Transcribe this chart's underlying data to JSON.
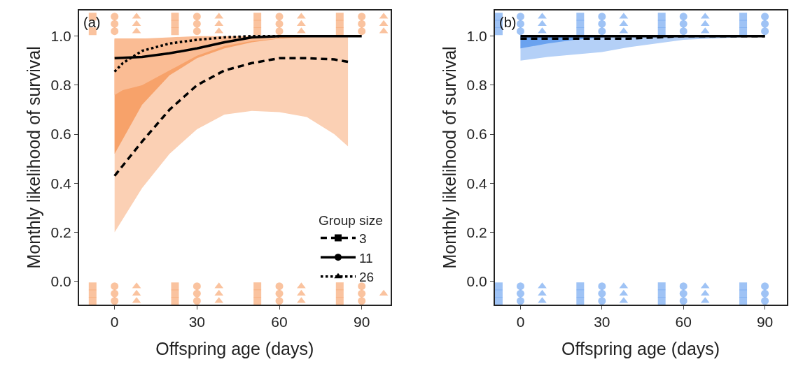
{
  "chart_data": [
    {
      "type": "line",
      "title": "(a)",
      "xlabel": "Offspring age (days)",
      "ylabel": "Monthly likelihood of survival",
      "legend_title": "Group size",
      "legend": "bottom right",
      "xlim": [
        -13,
        100.5
      ],
      "xticks": [
        0,
        30,
        60,
        90
      ],
      "ylim": [
        -0.095,
        1.105
      ],
      "yticks": [
        {
          "value": 0,
          "label": "0.0"
        },
        {
          "value": 0.2,
          "label": "0.2"
        },
        {
          "value": 0.4,
          "label": "0.4"
        },
        {
          "value": 0.6,
          "label": "0.6"
        },
        {
          "value": 0.8,
          "label": "0.8"
        },
        {
          "value": 1,
          "label": "1.0"
        }
      ],
      "series": [
        {
          "name": "3",
          "line_style": "dashed",
          "color": "#000000",
          "x": [
            0,
            10,
            20,
            30,
            40,
            50,
            60,
            70,
            80,
            85
          ],
          "values": [
            0.43,
            0.57,
            0.7,
            0.8,
            0.86,
            0.89,
            0.91,
            0.91,
            0.905,
            0.895
          ],
          "lower": [
            0.2,
            0.38,
            0.52,
            0.62,
            0.68,
            0.695,
            0.69,
            0.67,
            0.6,
            0.55
          ],
          "upper": [
            0.985,
            0.985,
            0.985,
            0.985,
            0.985,
            0.99,
            0.99,
            0.995,
            1.0,
            1.0
          ]
        },
        {
          "name": "11",
          "line_style": "solid",
          "color": "#000000",
          "x": [
            0,
            10,
            20,
            30,
            40,
            50,
            60,
            70,
            80,
            90
          ],
          "values": [
            0.91,
            0.915,
            0.93,
            0.95,
            0.975,
            0.995,
            1.0,
            1.0,
            1.0,
            1.0
          ],
          "lower": [
            0.52,
            0.72,
            0.84,
            0.91,
            0.95,
            0.975,
            0.99,
            0.995,
            1.0,
            1.0
          ],
          "upper": [
            0.99,
            0.99,
            0.99,
            0.99,
            0.995,
            1.0,
            1.0,
            1.0,
            1.0,
            1.0
          ]
        },
        {
          "name": "26",
          "line_style": "dotted",
          "color": "#000000",
          "x": [
            0,
            3,
            10,
            20,
            30,
            40,
            50,
            60
          ],
          "values": [
            0.855,
            0.89,
            0.94,
            0.97,
            0.985,
            0.995,
            1.0,
            1.0
          ],
          "lower": [
            0.76,
            0.78,
            0.8,
            0.86,
            0.92,
            0.96,
            0.98,
            0.99
          ],
          "upper": [
            0.99,
            0.99,
            0.99,
            0.995,
            1.0,
            1.0,
            1.0,
            1.0
          ]
        },
        {
          "type": "scatter",
          "marker": "square",
          "color": "#f47a2a",
          "x": [
            -8,
            -8,
            22,
            22,
            22,
            52,
            52,
            52,
            82,
            82,
            82,
            -8,
            -8,
            -8,
            22,
            22,
            22,
            52,
            52,
            52,
            82,
            82,
            82
          ],
          "values": [
            1.02,
            1.08,
            1.02,
            1.05,
            1.08,
            1.02,
            1.05,
            1.08,
            1.02,
            1.05,
            1.08,
            -0.02,
            -0.05,
            -0.08,
            -0.02,
            -0.05,
            -0.08,
            -0.02,
            -0.05,
            -0.08,
            -0.02,
            -0.05,
            -0.08
          ]
        },
        {
          "type": "scatter",
          "marker": "circle",
          "color": "#f47a2a",
          "x": [
            0,
            0,
            0,
            30,
            30,
            30,
            60,
            60,
            60,
            90,
            90,
            90,
            0,
            0,
            0,
            30,
            30,
            30,
            60,
            60,
            60,
            90,
            90,
            90
          ],
          "values": [
            1.02,
            1.05,
            1.08,
            1.02,
            1.05,
            1.08,
            1.02,
            1.05,
            1.08,
            1.02,
            1.05,
            1.08,
            -0.02,
            -0.05,
            -0.08,
            -0.02,
            -0.05,
            -0.08,
            -0.02,
            -0.05,
            -0.08,
            -0.02,
            -0.05,
            -0.08
          ]
        },
        {
          "type": "scatter",
          "marker": "triangle",
          "color": "#f47a2a",
          "x": [
            8,
            8,
            8,
            38,
            38,
            38,
            68,
            68,
            68,
            98,
            98,
            98,
            8,
            8,
            8,
            38,
            38,
            38,
            68,
            68,
            68,
            98
          ],
          "values": [
            1.02,
            1.05,
            1.08,
            1.02,
            1.05,
            1.08,
            1.02,
            1.05,
            1.08,
            1.02,
            1.05,
            1.08,
            -0.02,
            -0.05,
            -0.08,
            -0.02,
            -0.05,
            -0.08,
            -0.02,
            -0.05,
            -0.08,
            -0.05
          ]
        }
      ]
    },
    {
      "type": "line",
      "title": "(b)",
      "xlabel": "Offspring age (days)",
      "ylabel": "Monthly likelihood of survival",
      "xlim": [
        -9.5,
        98
      ],
      "xticks": [
        0,
        30,
        60,
        90
      ],
      "ylim": [
        -0.095,
        1.105
      ],
      "yticks": [
        {
          "value": 0,
          "label": "0.0"
        },
        {
          "value": 0.2,
          "label": "0.2"
        },
        {
          "value": 0.4,
          "label": "0.4"
        },
        {
          "value": 0.6,
          "label": "0.6"
        },
        {
          "value": 0.8,
          "label": "0.8"
        },
        {
          "value": 1,
          "label": "1.0"
        }
      ],
      "series": [
        {
          "line_style": "dashed",
          "color": "#000000",
          "x": [
            0,
            10,
            20,
            30,
            40,
            50,
            60,
            90
          ],
          "values": [
            0.99,
            0.99,
            0.99,
            0.99,
            0.99,
            0.995,
            1.0,
            1.0
          ],
          "lower": [
            0.9,
            0.915,
            0.925,
            0.935,
            0.955,
            0.97,
            0.985,
            1.0
          ],
          "upper": [
            1.0,
            1.0,
            1.0,
            1.0,
            1.0,
            1.0,
            1.0,
            1.0
          ]
        },
        {
          "line_style": "solid",
          "color": "#000000",
          "x": [
            0,
            10,
            20,
            30,
            40,
            50,
            60,
            90
          ],
          "values": [
            1.0,
            1.0,
            1.0,
            1.0,
            1.0,
            1.0,
            1.0,
            1.0
          ],
          "lower": [
            0.95,
            0.97,
            0.985,
            0.995,
            1.0,
            1.0,
            1.0,
            1.0
          ],
          "upper": [
            1.0,
            1.0,
            1.0,
            1.0,
            1.0,
            1.0,
            1.0,
            1.0
          ]
        },
        {
          "type": "scatter",
          "marker": "square",
          "color": "#2a7ae8",
          "x": [
            -8,
            -8,
            -8,
            22,
            22,
            22,
            52,
            52,
            52,
            82,
            82,
            82,
            -8,
            -8,
            -8,
            22,
            22,
            22,
            52,
            52,
            52,
            82,
            82,
            82
          ],
          "values": [
            1.02,
            1.05,
            1.08,
            1.02,
            1.05,
            1.08,
            1.02,
            1.05,
            1.08,
            1.02,
            1.05,
            1.08,
            -0.02,
            -0.05,
            -0.08,
            -0.02,
            -0.05,
            -0.08,
            -0.02,
            -0.05,
            -0.08,
            -0.02,
            -0.05,
            -0.08
          ]
        },
        {
          "type": "scatter",
          "marker": "circle",
          "color": "#2a7ae8",
          "x": [
            0,
            0,
            0,
            30,
            30,
            30,
            60,
            60,
            60,
            90,
            90,
            90,
            0,
            0,
            0,
            30,
            30,
            30,
            60,
            60,
            60,
            90,
            90,
            90
          ],
          "values": [
            1.02,
            1.05,
            1.08,
            1.02,
            1.05,
            1.08,
            1.02,
            1.05,
            1.08,
            1.02,
            1.05,
            1.08,
            -0.02,
            -0.05,
            -0.08,
            -0.02,
            -0.05,
            -0.08,
            -0.02,
            -0.05,
            -0.08,
            -0.02,
            -0.05,
            -0.08
          ]
        },
        {
          "type": "scatter",
          "marker": "triangle",
          "color": "#2a7ae8",
          "x": [
            8,
            8,
            8,
            38,
            38,
            38,
            68,
            68,
            68,
            8,
            8,
            8,
            38,
            38,
            38,
            68,
            68,
            68
          ],
          "values": [
            1.02,
            1.05,
            1.08,
            1.02,
            1.05,
            1.08,
            1.02,
            1.05,
            1.08,
            -0.02,
            -0.05,
            -0.08,
            -0.02,
            -0.05,
            -0.08,
            -0.02,
            -0.05,
            -0.08
          ]
        }
      ]
    }
  ]
}
